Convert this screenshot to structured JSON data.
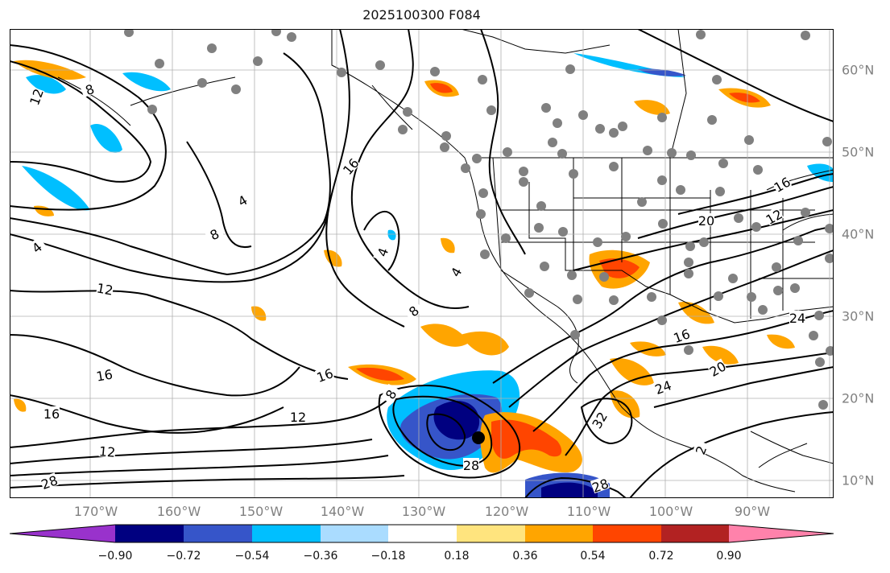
{
  "title": "2025100300 F084",
  "map": {
    "lon_labels": [
      "170°W",
      "160°W",
      "150°W",
      "140°W",
      "130°W",
      "120°W",
      "110°W",
      "100°W",
      "90°W"
    ],
    "lat_labels": [
      "60°N",
      "50°N",
      "40°N",
      "30°N",
      "20°N",
      "10°N"
    ],
    "contour_labels": [
      "12",
      "8",
      "4",
      "8",
      "4",
      "16",
      "12",
      "12",
      "16",
      "4",
      "4",
      "8",
      "16",
      "12",
      "28",
      "16",
      "16",
      "16",
      "20",
      "28",
      "28",
      "32",
      "24",
      "20",
      "24",
      "12",
      "8",
      "2"
    ],
    "grid": true,
    "extent": {
      "lon": [
        -178,
        -78
      ],
      "lat": [
        8,
        65
      ]
    }
  },
  "colorbar": {
    "ticks": [
      "−0.90",
      "−0.72",
      "−0.54",
      "−0.36",
      "−0.18",
      "0.18",
      "0.36",
      "0.54",
      "0.72",
      "0.90"
    ],
    "colors": [
      "#9932cc",
      "#000080",
      "#3655c9",
      "#00bfff",
      "#aadcff",
      "#ffffff",
      "#ffe47e",
      "#ffa500",
      "#ff4500",
      "#b22222",
      "#ff82ab"
    ]
  },
  "station_marker": {
    "lon": -122.4,
    "lat": 15.4
  }
}
